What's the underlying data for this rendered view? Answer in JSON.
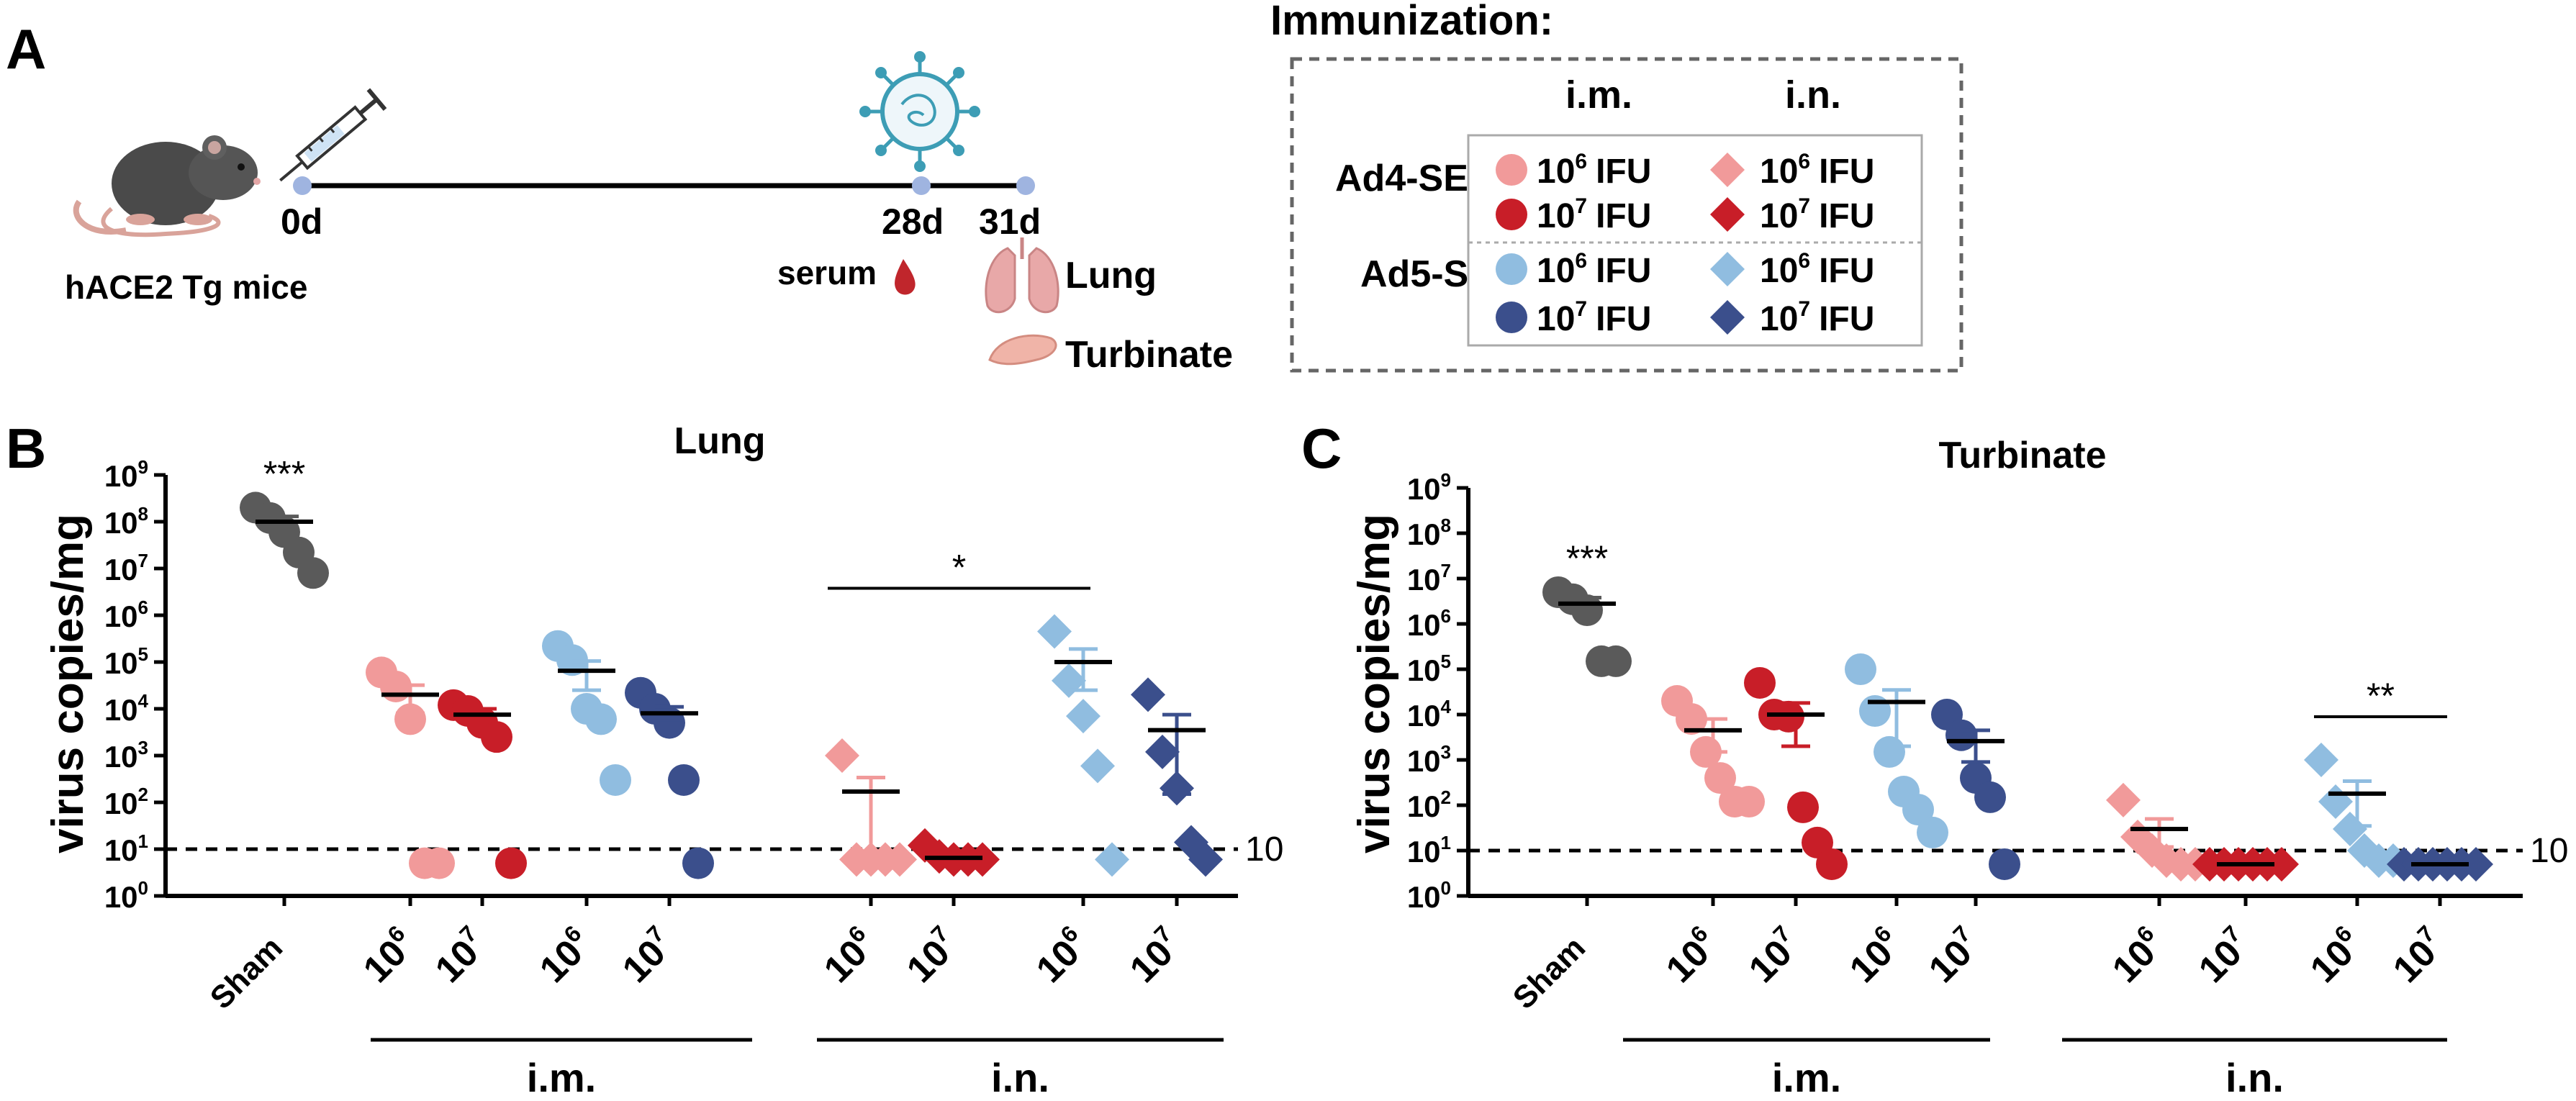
{
  "colors": {
    "sham": "#5a5a5a",
    "im_1e6": "#f19a9a",
    "im_1e7": "#c81e28",
    "in_1e6": "#90bde0",
    "in_1e7": "#3b4f8c",
    "axis": "#000000"
  },
  "panelA": {
    "label": "A",
    "mice_caption": "hACE2 Tg mice",
    "day0": "0d",
    "day28": "28d",
    "day31": "31d",
    "serum": "serum",
    "lung": "Lung",
    "turbinate": "Turbinate",
    "immunization_title": "Immunization:",
    "col_im": "i.m.",
    "col_in": "i.n.",
    "row_ad4": "Ad4-SE",
    "row_ad5": "Ad5-S",
    "dose_1e6": "10",
    "dose_1e6_exp": "6",
    "dose_1e7": "10",
    "dose_1e7_exp": "7",
    "ifu": "IFU"
  },
  "chart_data": [
    {
      "panel": "B",
      "type": "scatter",
      "title": "Lung",
      "ylabel": "virus copies/mg",
      "yscale": "log10",
      "ylim_exp": [
        0,
        9
      ],
      "ytick_base": "10",
      "ytick_exps": [
        "0",
        "1",
        "2",
        "3",
        "4",
        "5",
        "6",
        "7",
        "8",
        "9"
      ],
      "categories": [
        "Sham",
        "10^6",
        "10^7",
        "10^6",
        "10^7",
        "10^6",
        "10^7",
        "10^6",
        "10^7"
      ],
      "category_base": "10",
      "category_exps": [
        "",
        "6",
        "7",
        "6",
        "7",
        "6",
        "7",
        "6",
        "7"
      ],
      "sham_label": "Sham",
      "groups": [
        "i.m.",
        "i.n."
      ],
      "detection_limit": 10,
      "detection_label": "10",
      "series": [
        {
          "name": "Sham",
          "marker": "circle",
          "color": "sham",
          "values": [
            200000000.0,
            120000000.0,
            60000000.0,
            22000000.0,
            8000000.0
          ],
          "mean": 100000000.0,
          "sem_low": 70000000.0,
          "sem_high": 130000000.0
        },
        {
          "name": "Ad4-SE i.m. 10^6",
          "marker": "circle",
          "color": "im_1e6",
          "values": [
            60000.0,
            30000.0,
            6000.0,
            5,
            5
          ],
          "mean": 20000.0,
          "sem_low": 8000.0,
          "sem_high": 32000.0
        },
        {
          "name": "Ad4-SE i.m. 10^7",
          "marker": "circle",
          "color": "im_1e7",
          "values": [
            12000.0,
            9000.0,
            5000.0,
            2500.0,
            5
          ],
          "mean": 7500.0,
          "sem_low": 4000.0,
          "sem_high": 10000.0
        },
        {
          "name": "Ad5-S i.m. 10^6",
          "marker": "circle",
          "color": "in_1e6",
          "values": [
            220000.0,
            110000.0,
            10000.0,
            6000.0,
            300.0
          ],
          "mean": 65000.0,
          "sem_low": 25000.0,
          "sem_high": 105000.0
        },
        {
          "name": "Ad5-S i.m. 10^7",
          "marker": "circle",
          "color": "in_1e7",
          "values": [
            22000.0,
            10000.0,
            5000.0,
            300.0,
            5
          ],
          "mean": 8000.0,
          "sem_low": 5000.0,
          "sem_high": 11000.0
        },
        {
          "name": "Ad4-SE i.n. 10^6",
          "marker": "diamond",
          "color": "im_1e6",
          "values": [
            1000.0,
            6,
            6,
            6,
            6
          ],
          "mean": 170,
          "sem_low": 6,
          "sem_high": 340
        },
        {
          "name": "Ad4-SE i.n. 10^7",
          "marker": "diamond",
          "color": "im_1e7",
          "values": [
            12,
            7,
            6,
            6,
            6
          ],
          "mean": 6.5,
          "sem_low": 5.8,
          "sem_high": 7.5
        },
        {
          "name": "Ad5-S i.n. 10^6",
          "marker": "diamond",
          "color": "in_1e6",
          "values": [
            450000.0,
            40000.0,
            7000.0,
            600.0,
            6
          ],
          "mean": 100000.0,
          "sem_low": 25000.0,
          "sem_high": 190000.0
        },
        {
          "name": "Ad5-S i.n. 10^7",
          "marker": "diamond",
          "color": "in_1e7",
          "values": [
            20000.0,
            1200.0,
            200.0,
            14,
            6
          ],
          "mean": 3500.0,
          "sem_low": 150.0,
          "sem_high": 7500.0
        }
      ],
      "significance": [
        {
          "label": "***",
          "over": [
            0
          ]
        },
        {
          "label": "*",
          "over": [
            5,
            7
          ]
        }
      ]
    },
    {
      "panel": "C",
      "type": "scatter",
      "title": "Turbinate",
      "ylabel": "virus copies/mg",
      "yscale": "log10",
      "ylim_exp": [
        0,
        9
      ],
      "ytick_base": "10",
      "ytick_exps": [
        "0",
        "1",
        "2",
        "3",
        "4",
        "5",
        "6",
        "7",
        "8",
        "9"
      ],
      "categories": [
        "Sham",
        "10^6",
        "10^7",
        "10^6",
        "10^7",
        "10^6",
        "10^7",
        "10^6",
        "10^7"
      ],
      "category_base": "10",
      "category_exps": [
        "",
        "6",
        "7",
        "6",
        "7",
        "6",
        "7",
        "6",
        "7"
      ],
      "sham_label": "Sham",
      "groups": [
        "i.m.",
        "i.n."
      ],
      "detection_limit": 10,
      "detection_label": "10",
      "series": [
        {
          "name": "Sham",
          "marker": "circle",
          "color": "sham",
          "values": [
            5000000.0,
            3500000.0,
            2000000.0,
            150000.0,
            150000.0
          ],
          "mean": 2800000.0,
          "sem_low": 1800000.0,
          "sem_high": 3800000.0
        },
        {
          "name": "Ad4-SE i.m. 10^6",
          "marker": "circle",
          "color": "im_1e6",
          "values": [
            20000.0,
            8000.0,
            1500.0,
            400.0,
            120.0,
            120.0
          ],
          "mean": 4500.0,
          "sem_low": 1500.0,
          "sem_high": 8000.0
        },
        {
          "name": "Ad4-SE i.m. 10^7",
          "marker": "circle",
          "color": "im_1e7",
          "values": [
            50000.0,
            10000.0,
            9000.0,
            90,
            15,
            5
          ],
          "mean": 10000.0,
          "sem_low": 2000.0,
          "sem_high": 18000.0
        },
        {
          "name": "Ad5-S i.m. 10^6",
          "marker": "circle",
          "color": "in_1e6",
          "values": [
            100000.0,
            12000.0,
            1500.0,
            200.0,
            80,
            25
          ],
          "mean": 19000.0,
          "sem_low": 2000.0,
          "sem_high": 35000.0
        },
        {
          "name": "Ad5-S i.m. 10^7",
          "marker": "circle",
          "color": "in_1e7",
          "values": [
            10000.0,
            3500.0,
            400.0,
            150.0,
            5
          ],
          "mean": 2600.0,
          "sem_low": 900.0,
          "sem_high": 4500.0
        },
        {
          "name": "Ad4-SE i.n. 10^6",
          "marker": "diamond",
          "color": "im_1e6",
          "values": [
            130.0,
            20,
            10,
            6,
            5,
            5
          ],
          "mean": 30,
          "sem_low": 12,
          "sem_high": 50
        },
        {
          "name": "Ad4-SE i.n. 10^7",
          "marker": "diamond",
          "color": "im_1e7",
          "values": [
            5,
            5,
            5,
            5,
            5,
            5
          ],
          "mean": 5,
          "sem_low": 5,
          "sem_high": 5
        },
        {
          "name": "Ad5-S i.n. 10^6",
          "marker": "diamond",
          "color": "in_1e6",
          "values": [
            1000.0,
            120.0,
            30,
            10,
            6,
            6
          ],
          "mean": 180,
          "sem_low": 35,
          "sem_high": 340
        },
        {
          "name": "Ad5-S i.n. 10^7",
          "marker": "diamond",
          "color": "in_1e7",
          "values": [
            5,
            5,
            5,
            5,
            5,
            5
          ],
          "mean": 5,
          "sem_low": 5,
          "sem_high": 5
        }
      ],
      "significance": [
        {
          "label": "***",
          "over": [
            0
          ]
        },
        {
          "label": "**",
          "over": [
            7,
            8
          ]
        }
      ]
    }
  ]
}
